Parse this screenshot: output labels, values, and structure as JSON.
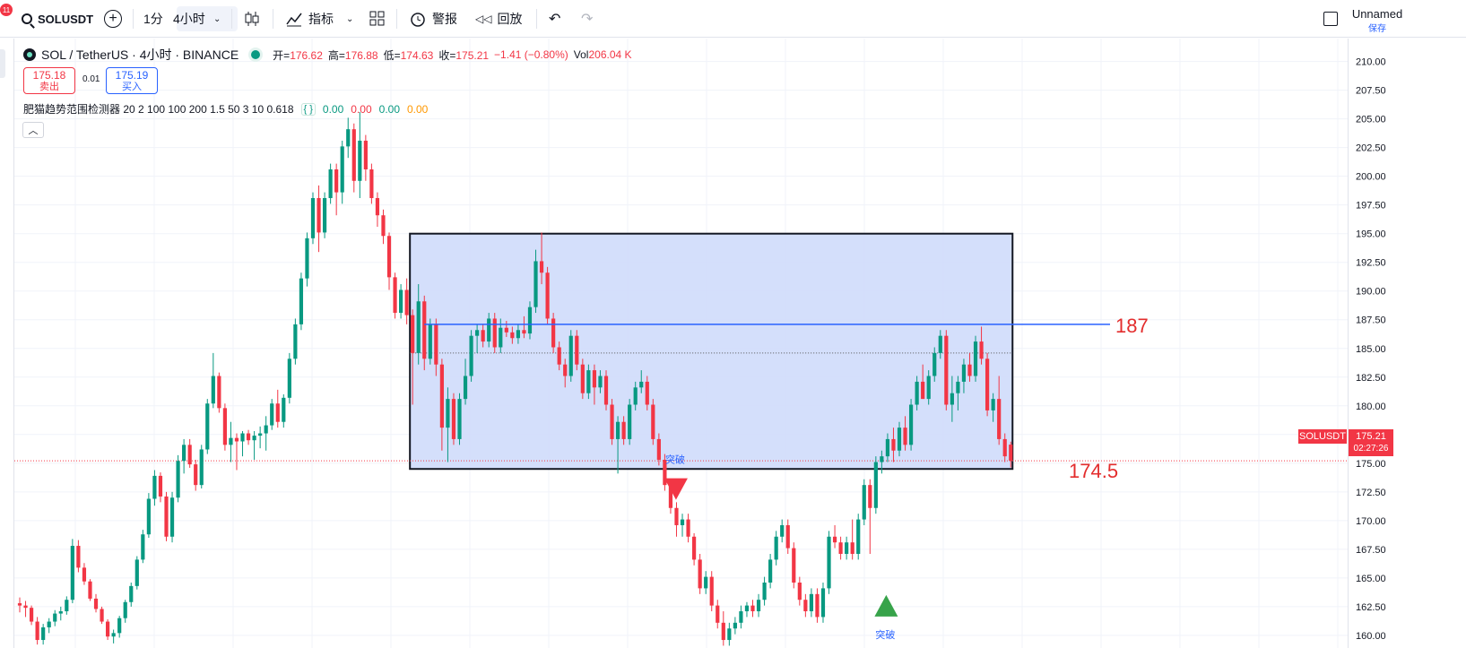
{
  "toolbar": {
    "notification_count": "11",
    "symbol": "SOLUSDT",
    "timeframe_1": "1分",
    "timeframe_2": "4小时",
    "indicators_label": "指标",
    "alert_label": "警报",
    "replay_label": "回放",
    "layout_name": "Unnamed",
    "save_label": "保存"
  },
  "legend": {
    "title": "SOL / TetherUS · 4小时 · BINANCE",
    "open_label": "开=",
    "open": "176.62",
    "high_label": "高=",
    "high": "176.88",
    "low_label": "低=",
    "low": "174.63",
    "close_label": "收=",
    "close": "175.21",
    "change": "−1.41 (−0.80%)",
    "vol_label": "Vol",
    "vol": "206.04 K"
  },
  "trade": {
    "sell_price": "175.18",
    "sell_label": "卖出",
    "spread": "0.01",
    "buy_price": "175.19",
    "buy_label": "买入"
  },
  "indicator": {
    "label": "肥猫趋势范围检测器 20 2 100 100 200 1.5 50 3 10 0.618",
    "values": [
      "0.00",
      "0.00",
      "0.00",
      "0.00"
    ],
    "value_colors": [
      "#089981",
      "#f23645",
      "#089981",
      "#ff9800"
    ]
  },
  "price_axis": {
    "symbol_label": "SOLUSDT",
    "last_price": "175.21",
    "countdown": "02:27:26"
  },
  "colors": {
    "up": "#089981",
    "down": "#f23645",
    "range_fill": "#cfdcfb",
    "range_border": "#131722",
    "line_187": "#2962ff",
    "annotation": "#e32d2d"
  },
  "chart_data": {
    "type": "candlestick",
    "symbol": "SOL / TetherUS",
    "interval": "4小时",
    "exchange": "BINANCE",
    "ylim": [
      158.9,
      212.0
    ],
    "y_ticks": [
      160.0,
      162.5,
      165.0,
      167.5,
      170.0,
      172.5,
      175.0,
      177.5,
      180.0,
      182.5,
      185.0,
      187.5,
      190.0,
      192.5,
      195.0,
      197.5,
      200.0,
      202.5,
      205.0,
      207.5,
      210.0
    ],
    "candles": [
      [
        162.8,
        163.3,
        162.0,
        162.6
      ],
      [
        162.6,
        163.0,
        161.6,
        162.4
      ],
      [
        162.4,
        162.6,
        160.9,
        161.2
      ],
      [
        161.2,
        161.6,
        159.2,
        159.6
      ],
      [
        159.6,
        161.0,
        159.2,
        160.7
      ],
      [
        160.7,
        161.5,
        160.2,
        161.2
      ],
      [
        161.2,
        162.2,
        160.8,
        161.9
      ],
      [
        161.9,
        162.5,
        161.3,
        162.1
      ],
      [
        162.1,
        163.4,
        161.8,
        163.1
      ],
      [
        163.1,
        168.4,
        162.8,
        167.8
      ],
      [
        167.8,
        168.3,
        165.5,
        165.9
      ],
      [
        165.9,
        166.3,
        164.4,
        164.7
      ],
      [
        164.7,
        164.9,
        163.0,
        163.2
      ],
      [
        163.2,
        163.6,
        162.0,
        162.3
      ],
      [
        162.3,
        162.5,
        161.0,
        161.2
      ],
      [
        161.2,
        161.4,
        159.6,
        159.9
      ],
      [
        159.9,
        160.5,
        159.3,
        160.2
      ],
      [
        160.2,
        161.7,
        159.8,
        161.5
      ],
      [
        161.5,
        163.1,
        161.1,
        162.9
      ],
      [
        162.9,
        164.6,
        162.5,
        164.3
      ],
      [
        164.3,
        166.9,
        164.0,
        166.6
      ],
      [
        166.6,
        169.2,
        166.3,
        168.8
      ],
      [
        168.8,
        172.4,
        168.5,
        171.9
      ],
      [
        171.9,
        174.4,
        171.3,
        173.9
      ],
      [
        173.9,
        174.2,
        171.6,
        172.1
      ],
      [
        172.1,
        172.5,
        168.2,
        168.6
      ],
      [
        168.6,
        172.5,
        168.1,
        172.0
      ],
      [
        172.0,
        175.7,
        171.6,
        175.2
      ],
      [
        175.2,
        177.1,
        174.1,
        176.6
      ],
      [
        176.6,
        177.1,
        174.6,
        174.9
      ],
      [
        174.9,
        175.3,
        172.6,
        173.1
      ],
      [
        173.1,
        176.6,
        172.8,
        176.2
      ],
      [
        176.2,
        180.6,
        175.8,
        180.2
      ],
      [
        180.2,
        184.6,
        179.8,
        182.6
      ],
      [
        182.6,
        182.9,
        179.4,
        179.8
      ],
      [
        179.8,
        180.2,
        176.1,
        176.6
      ],
      [
        176.6,
        178.6,
        175.1,
        177.2
      ],
      [
        177.2,
        177.6,
        174.4,
        176.9
      ],
      [
        176.9,
        177.8,
        175.6,
        177.6
      ],
      [
        177.6,
        177.9,
        176.6,
        177.0
      ],
      [
        177.0,
        177.8,
        175.3,
        177.4
      ],
      [
        177.4,
        178.2,
        176.3,
        177.6
      ],
      [
        177.6,
        179.1,
        176.1,
        178.3
      ],
      [
        178.3,
        180.6,
        177.9,
        180.2
      ],
      [
        180.2,
        181.4,
        178.1,
        178.6
      ],
      [
        178.6,
        181.0,
        178.1,
        180.7
      ],
      [
        180.7,
        184.6,
        180.2,
        184.1
      ],
      [
        184.1,
        187.6,
        183.6,
        187.1
      ],
      [
        187.1,
        191.6,
        186.6,
        191.1
      ],
      [
        191.1,
        195.1,
        190.4,
        194.6
      ],
      [
        194.6,
        198.6,
        194.1,
        198.1
      ],
      [
        198.1,
        199.2,
        193.4,
        195.1
      ],
      [
        195.1,
        198.6,
        194.6,
        198.1
      ],
      [
        198.1,
        201.1,
        197.6,
        200.6
      ],
      [
        200.6,
        201.1,
        196.6,
        198.6
      ],
      [
        198.6,
        203.1,
        197.6,
        202.6
      ],
      [
        202.6,
        205.1,
        201.6,
        204.1
      ],
      [
        204.1,
        204.6,
        198.6,
        199.6
      ],
      [
        199.6,
        205.6,
        198.1,
        203.1
      ],
      [
        203.1,
        203.6,
        199.6,
        200.6
      ],
      [
        200.6,
        201.1,
        197.6,
        198.1
      ],
      [
        198.1,
        198.6,
        195.6,
        196.6
      ],
      [
        196.6,
        197.1,
        194.1,
        194.8
      ],
      [
        194.8,
        195.1,
        190.1,
        191.2
      ],
      [
        191.2,
        191.6,
        187.6,
        188.1
      ],
      [
        188.1,
        190.6,
        187.6,
        190.1
      ],
      [
        190.1,
        191.1,
        187.1,
        187.9
      ],
      [
        187.9,
        188.4,
        180.1,
        184.6
      ],
      [
        184.6,
        190.6,
        183.6,
        189.1
      ],
      [
        189.1,
        189.6,
        183.1,
        184.1
      ],
      [
        184.1,
        187.6,
        183.6,
        187.1
      ],
      [
        187.1,
        187.6,
        182.6,
        183.6
      ],
      [
        183.6,
        184.1,
        176.1,
        178.1
      ],
      [
        178.1,
        181.6,
        175.1,
        180.6
      ],
      [
        180.6,
        181.1,
        176.6,
        177.1
      ],
      [
        177.1,
        181.1,
        176.6,
        180.6
      ],
      [
        180.6,
        184.1,
        180.1,
        182.6
      ],
      [
        182.6,
        186.6,
        182.1,
        186.1
      ],
      [
        186.1,
        187.1,
        184.6,
        186.6
      ],
      [
        186.6,
        187.1,
        185.1,
        185.6
      ],
      [
        185.6,
        188.1,
        185.1,
        187.6
      ],
      [
        187.6,
        188.1,
        184.6,
        185.1
      ],
      [
        185.1,
        187.6,
        184.6,
        186.8
      ],
      [
        186.8,
        187.4,
        186.0,
        186.4
      ],
      [
        186.4,
        186.9,
        185.4,
        185.9
      ],
      [
        185.9,
        187.1,
        185.4,
        186.6
      ],
      [
        186.6,
        187.8,
        185.9,
        186.3
      ],
      [
        186.3,
        189.1,
        185.8,
        188.6
      ],
      [
        188.6,
        193.6,
        188.1,
        192.6
      ],
      [
        192.6,
        195.1,
        190.6,
        191.6
      ],
      [
        191.6,
        192.1,
        187.1,
        187.6
      ],
      [
        187.6,
        188.1,
        184.6,
        185.1
      ],
      [
        185.1,
        185.6,
        183.1,
        183.6
      ],
      [
        183.6,
        184.1,
        181.6,
        182.6
      ],
      [
        182.6,
        186.6,
        182.1,
        186.1
      ],
      [
        186.1,
        186.6,
        183.1,
        183.6
      ],
      [
        183.6,
        184.1,
        180.6,
        181.1
      ],
      [
        181.1,
        183.6,
        180.6,
        183.1
      ],
      [
        183.1,
        183.6,
        180.1,
        181.6
      ],
      [
        181.6,
        183.1,
        181.1,
        182.6
      ],
      [
        182.6,
        183.1,
        179.6,
        180.1
      ],
      [
        180.1,
        180.6,
        176.6,
        177.1
      ],
      [
        177.1,
        179.1,
        174.1,
        178.6
      ],
      [
        178.6,
        179.1,
        176.6,
        177.1
      ],
      [
        177.1,
        180.6,
        176.6,
        180.1
      ],
      [
        180.1,
        182.1,
        179.6,
        181.6
      ],
      [
        181.6,
        183.1,
        181.1,
        182.1
      ],
      [
        182.1,
        182.6,
        179.6,
        180.1
      ],
      [
        180.1,
        180.6,
        176.6,
        177.1
      ],
      [
        177.1,
        177.6,
        174.8,
        175.3
      ],
      [
        175.3,
        175.8,
        172.6,
        173.1
      ],
      [
        173.1,
        173.6,
        170.6,
        171.1
      ],
      [
        171.1,
        171.6,
        168.6,
        169.6
      ],
      [
        169.6,
        170.6,
        168.6,
        170.1
      ],
      [
        170.1,
        170.6,
        168.1,
        168.6
      ],
      [
        168.6,
        168.9,
        166.1,
        166.6
      ],
      [
        166.6,
        167.1,
        163.6,
        164.1
      ],
      [
        164.1,
        165.6,
        163.6,
        165.1
      ],
      [
        165.1,
        165.6,
        162.1,
        162.6
      ],
      [
        162.6,
        163.1,
        160.6,
        161.1
      ],
      [
        161.1,
        162.1,
        159.1,
        159.6
      ],
      [
        159.6,
        161.1,
        159.1,
        160.6
      ],
      [
        160.6,
        161.6,
        160.1,
        161.1
      ],
      [
        161.1,
        162.6,
        160.6,
        162.1
      ],
      [
        162.1,
        162.9,
        161.6,
        162.6
      ],
      [
        162.6,
        163.1,
        161.6,
        162.1
      ],
      [
        162.1,
        163.6,
        161.6,
        163.1
      ],
      [
        163.1,
        165.1,
        162.6,
        164.6
      ],
      [
        164.6,
        167.1,
        164.1,
        166.6
      ],
      [
        166.6,
        169.1,
        166.1,
        168.6
      ],
      [
        168.6,
        170.1,
        168.1,
        169.6
      ],
      [
        169.6,
        170.1,
        167.1,
        167.6
      ],
      [
        167.6,
        168.1,
        164.1,
        164.6
      ],
      [
        164.6,
        165.1,
        162.6,
        163.1
      ],
      [
        163.1,
        163.6,
        161.6,
        162.1
      ],
      [
        162.1,
        164.1,
        161.6,
        163.6
      ],
      [
        163.6,
        164.1,
        161.1,
        161.6
      ],
      [
        161.6,
        164.6,
        161.1,
        164.1
      ],
      [
        164.1,
        169.1,
        163.6,
        168.6
      ],
      [
        168.6,
        169.6,
        167.6,
        168.1
      ],
      [
        168.1,
        168.6,
        166.6,
        167.1
      ],
      [
        167.1,
        168.6,
        166.6,
        168.1
      ],
      [
        168.1,
        170.1,
        166.6,
        167.1
      ],
      [
        167.1,
        170.6,
        166.6,
        170.1
      ],
      [
        170.1,
        173.6,
        169.6,
        173.1
      ],
      [
        173.1,
        173.6,
        167.1,
        171.1
      ],
      [
        171.1,
        175.6,
        170.6,
        175.1
      ],
      [
        175.1,
        176.1,
        174.1,
        175.6
      ],
      [
        175.6,
        177.6,
        175.1,
        177.1
      ],
      [
        177.1,
        178.1,
        175.1,
        176.1
      ],
      [
        176.1,
        178.6,
        175.6,
        178.1
      ],
      [
        178.1,
        179.1,
        176.1,
        176.6
      ],
      [
        176.6,
        180.6,
        176.1,
        180.1
      ],
      [
        180.1,
        182.6,
        179.6,
        182.1
      ],
      [
        182.1,
        183.6,
        180.6,
        180.6
      ],
      [
        180.6,
        183.1,
        180.1,
        182.6
      ],
      [
        182.6,
        185.1,
        182.1,
        184.6
      ],
      [
        184.6,
        186.6,
        184.1,
        186.1
      ],
      [
        186.1,
        186.6,
        179.6,
        180.1
      ],
      [
        180.1,
        182.6,
        178.6,
        181.1
      ],
      [
        181.1,
        182.6,
        179.6,
        182.1
      ],
      [
        182.1,
        184.1,
        181.1,
        183.6
      ],
      [
        183.6,
        184.6,
        182.1,
        182.6
      ],
      [
        182.6,
        186.1,
        182.1,
        185.6
      ],
      [
        185.6,
        186.9,
        183.6,
        184.1
      ],
      [
        184.1,
        184.6,
        179.1,
        179.6
      ],
      [
        179.6,
        181.1,
        178.6,
        180.6
      ],
      [
        180.6,
        182.6,
        176.6,
        177.1
      ],
      [
        177.1,
        177.6,
        175.1,
        175.6
      ],
      [
        176.62,
        176.88,
        174.63,
        175.21
      ]
    ],
    "range_box": {
      "top": 195.0,
      "bottom": 174.5
    },
    "horizontal_line": {
      "value": 187.1,
      "label": "187"
    },
    "midline": 184.6,
    "bottom_label": "174.5",
    "last_price_line": 175.21,
    "breakout_down": {
      "text": "突破",
      "candle_index": 111,
      "marker_price": 173.3
    },
    "breakout_up": {
      "text": "突破",
      "candle_index": 147,
      "marker_price": 162.5
    }
  }
}
